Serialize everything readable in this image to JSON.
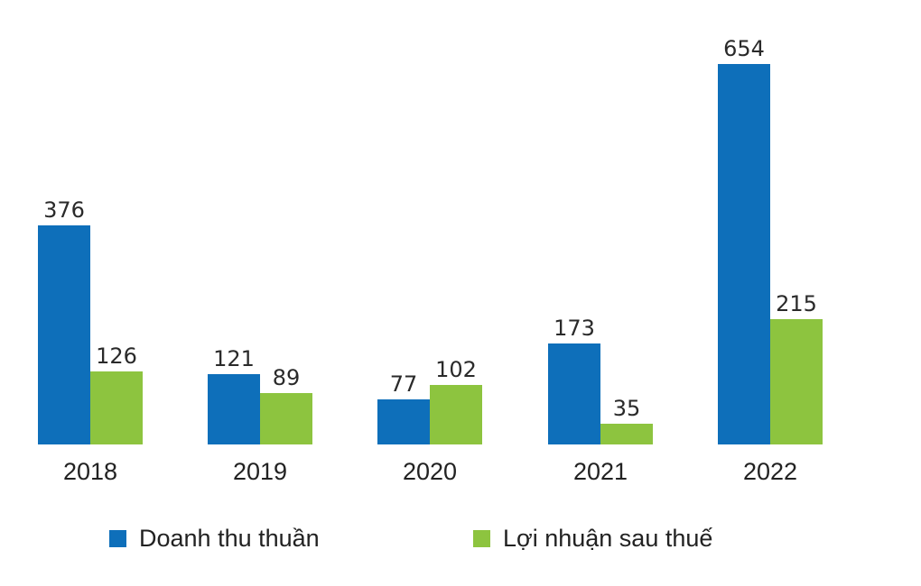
{
  "chart_data": {
    "type": "bar",
    "title": "",
    "xlabel": "",
    "ylabel": "",
    "categories": [
      "2018",
      "2019",
      "2020",
      "2021",
      "2022"
    ],
    "series": [
      {
        "name": "Doanh thu thuần",
        "color": "#0e6fba",
        "values": [
          376,
          121,
          77,
          173,
          654
        ]
      },
      {
        "name": "Lợi nhuận sau thuế",
        "color": "#8dc43f",
        "values": [
          126,
          89,
          102,
          35,
          215
        ]
      }
    ],
    "grid": false,
    "legend_position": "bottom",
    "ylim": [
      0,
      654
    ]
  },
  "legend": {
    "items": [
      {
        "label": "Doanh thu thuần",
        "color": "#0e6fba"
      },
      {
        "label": "Lợi nhuận sau thuế",
        "color": "#8dc43f"
      }
    ]
  }
}
